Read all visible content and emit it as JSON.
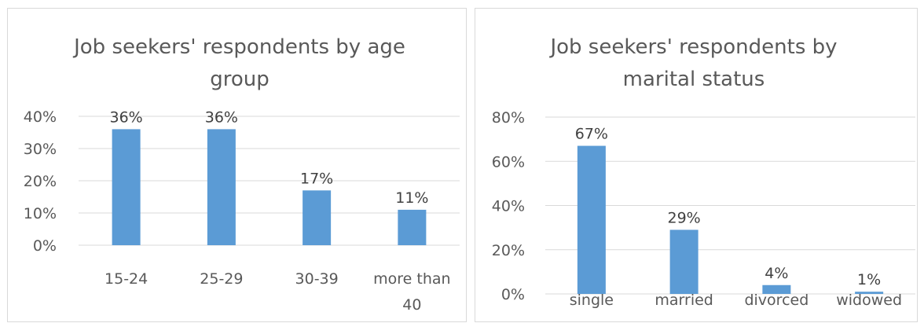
{
  "chart_data": [
    {
      "type": "bar",
      "title_lines": [
        "Job seekers' respondents by age",
        "group"
      ],
      "categories": [
        "15-24",
        "25-29",
        "30-39",
        "more than 40"
      ],
      "category_lines": [
        [
          "15-24"
        ],
        [
          "25-29"
        ],
        [
          "30-39"
        ],
        [
          "more than",
          "40"
        ]
      ],
      "values": [
        36,
        36,
        17,
        11
      ],
      "data_labels": [
        "36%",
        "36%",
        "17%",
        "11%"
      ],
      "yticks": [
        "0%",
        "10%",
        "20%",
        "30%",
        "40%"
      ],
      "ylim": [
        0,
        40
      ],
      "grid": true,
      "bar_color": "#5b9bd5"
    },
    {
      "type": "bar",
      "title_lines": [
        "Job seekers' respondents by",
        "marital status"
      ],
      "categories": [
        "single",
        "married",
        "divorced",
        "widowed"
      ],
      "category_lines": [
        [
          "single"
        ],
        [
          "married"
        ],
        [
          "divorced"
        ],
        [
          "widowed"
        ]
      ],
      "values": [
        67,
        29,
        4,
        1
      ],
      "data_labels": [
        "67%",
        "29%",
        "4%",
        "1%"
      ],
      "yticks": [
        "0%",
        "20%",
        "40%",
        "60%",
        "80%"
      ],
      "ylim": [
        0,
        80
      ],
      "grid": true,
      "bar_color": "#5b9bd5"
    }
  ]
}
